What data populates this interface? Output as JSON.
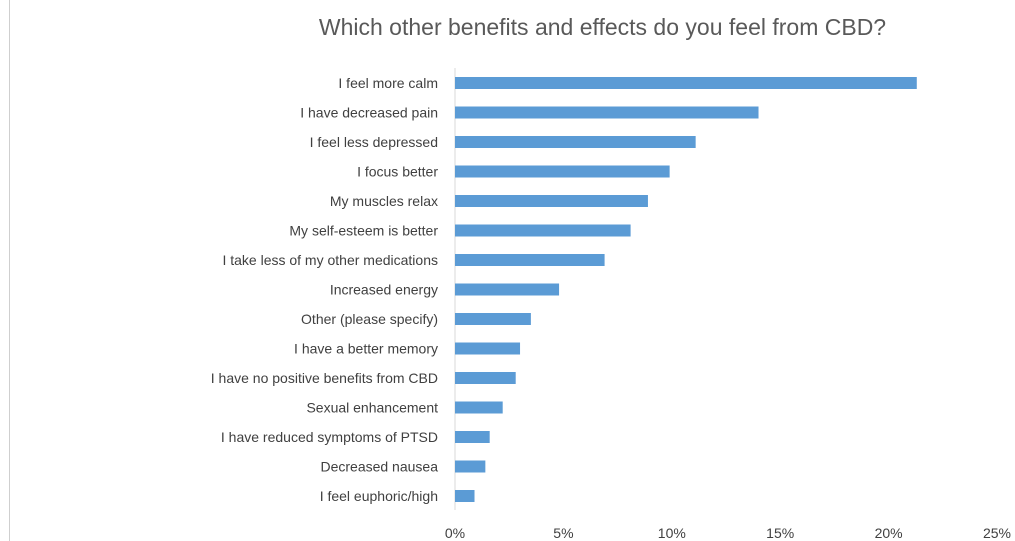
{
  "chart_data": {
    "type": "bar",
    "orientation": "horizontal",
    "title": "Which other benefits and effects do you feel from CBD?",
    "xlabel": "",
    "ylabel": "",
    "categories": [
      "I feel more calm",
      "I have decreased pain",
      "I feel less depressed",
      "I focus better",
      "My muscles relax",
      "My self-esteem is better",
      "I take less of my other medications",
      "Increased energy",
      "Other (please specify)",
      "I have a better memory",
      "I have no positive benefits from CBD",
      "Sexual enhancement",
      "I have reduced symptoms of PTSD",
      "Decreased nausea",
      "I feel euphoric/high"
    ],
    "values": [
      21.3,
      14.0,
      11.1,
      9.9,
      8.9,
      8.1,
      6.9,
      4.8,
      3.5,
      3.0,
      2.8,
      2.2,
      1.6,
      1.4,
      0.9
    ],
    "xlim": [
      0,
      25
    ],
    "xticks": [
      0,
      5,
      10,
      15,
      20,
      25
    ],
    "xtick_labels": [
      "0%",
      "5%",
      "10%",
      "15%",
      "20%",
      "25%"
    ],
    "grid": false,
    "legend": "none",
    "bar_color": "#5b9bd5"
  }
}
